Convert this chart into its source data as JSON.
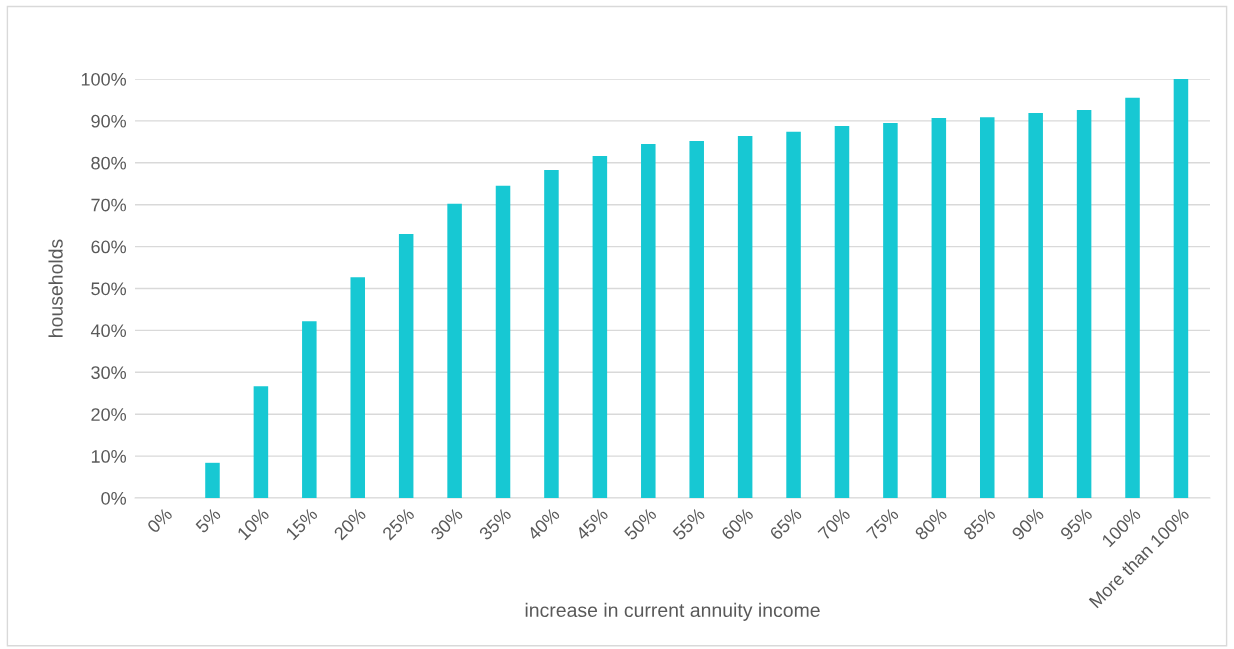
{
  "chart_data": {
    "type": "bar",
    "xlabel": "increase in current annuity income",
    "ylabel": "households",
    "categories": [
      "0%",
      "5%",
      "10%",
      "15%",
      "20%",
      "25%",
      "30%",
      "35%",
      "40%",
      "45%",
      "50%",
      "55%",
      "60%",
      "65%",
      "70%",
      "75%",
      "80%",
      "85%",
      "90%",
      "95%",
      "100%",
      "More than 100%"
    ],
    "values": [
      0,
      8.4,
      26.7,
      42.2,
      52.7,
      63.0,
      70.2,
      74.5,
      78.3,
      81.6,
      84.5,
      85.2,
      86.4,
      87.4,
      88.8,
      89.5,
      90.7,
      90.9,
      91.9,
      92.6,
      95.5,
      100
    ],
    "color": "#17c8d3",
    "ylim": [
      0,
      100
    ],
    "yticks": [
      {
        "value": 0,
        "label": "0%"
      },
      {
        "value": 10,
        "label": "10%"
      },
      {
        "value": 20,
        "label": "20%"
      },
      {
        "value": 30,
        "label": "30%"
      },
      {
        "value": 40,
        "label": "40%"
      },
      {
        "value": 50,
        "label": "50%"
      },
      {
        "value": 60,
        "label": "60%"
      },
      {
        "value": 70,
        "label": "70%"
      },
      {
        "value": 80,
        "label": "80%"
      },
      {
        "value": 90,
        "label": "90%"
      },
      {
        "value": 100,
        "label": "100%"
      }
    ],
    "grid": "y",
    "legend": false
  }
}
